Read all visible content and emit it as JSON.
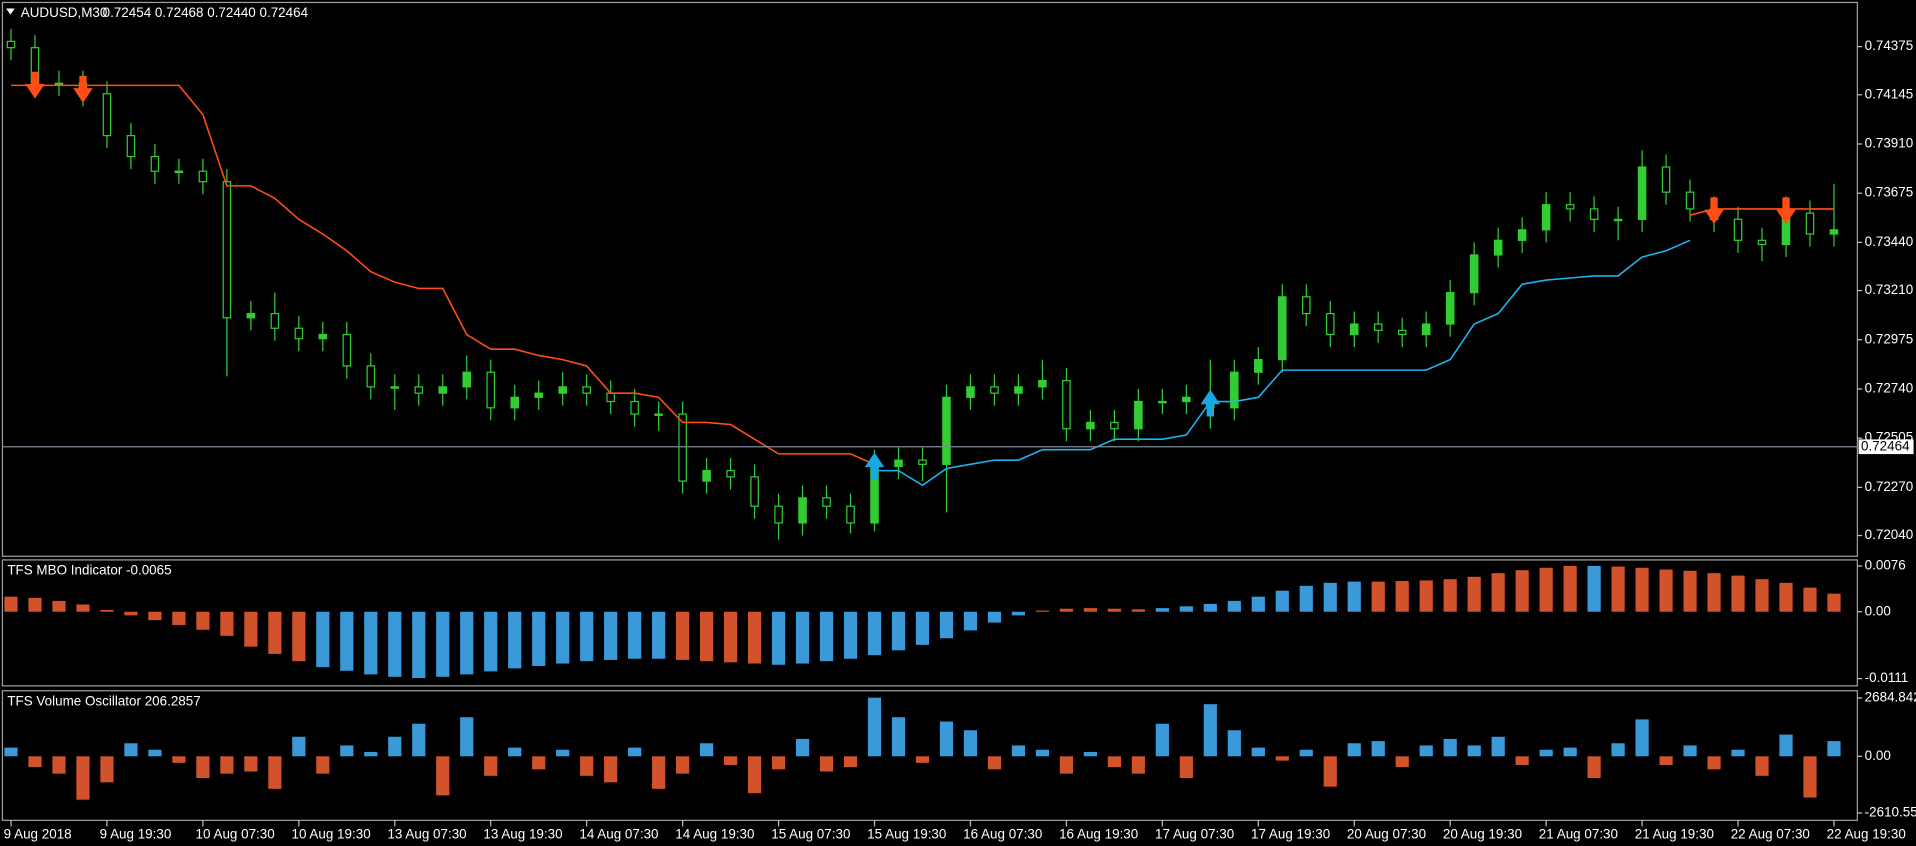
{
  "chart_data": [
    {
      "type": "candlestick",
      "title": "AUDUSD,M30",
      "subtitle": "0.72454 0.72468 0.72440 0.72464",
      "categories": [
        "9 Aug 2018",
        null,
        null,
        null,
        "9 Aug 19:30",
        null,
        null,
        null,
        "10 Aug 07:30",
        null,
        null,
        null,
        "10 Aug 19:30",
        null,
        null,
        null,
        "13 Aug 07:30",
        null,
        null,
        null,
        "13 Aug 19:30",
        null,
        null,
        null,
        "14 Aug 07:30",
        null,
        null,
        null,
        "14 Aug 19:30",
        null,
        null,
        null,
        "15 Aug 07:30",
        null,
        null,
        null,
        "15 Aug 19:30",
        null,
        null,
        null,
        "16 Aug 07:30",
        null,
        null,
        null,
        "16 Aug 19:30",
        null,
        null,
        null,
        "17 Aug 07:30",
        null,
        null,
        null,
        "17 Aug 19:30",
        null,
        null,
        null,
        "20 Aug 07:30",
        null,
        null,
        null,
        "20 Aug 19:30",
        null,
        null,
        null,
        "21 Aug 07:30",
        null,
        null,
        null,
        "21 Aug 19:30",
        null,
        null,
        null,
        "22 Aug 07:30",
        null,
        null,
        null,
        "22 Aug 19:30"
      ],
      "open": [
        0.744,
        0.7437,
        0.742,
        0.742,
        0.7415,
        0.7395,
        0.7385,
        0.7378,
        0.7378,
        0.7373,
        0.7308,
        0.731,
        0.7303,
        0.7298,
        0.73,
        0.7285,
        0.7275,
        0.7275,
        0.7272,
        0.7275,
        0.7282,
        0.7265,
        0.727,
        0.7272,
        0.7275,
        0.7272,
        0.7268,
        0.7262,
        0.7262,
        0.723,
        0.7235,
        0.7232,
        0.7218,
        0.721,
        0.7222,
        0.7218,
        0.721,
        0.7237,
        0.724,
        0.7238,
        0.727,
        0.7275,
        0.7272,
        0.7275,
        0.7278,
        0.7255,
        0.7258,
        0.7255,
        0.7268,
        0.7268,
        0.727,
        0.7265,
        0.7282,
        0.7288,
        0.7318,
        0.731,
        0.73,
        0.7305,
        0.7302,
        0.73,
        0.7305,
        0.732,
        0.7338,
        0.7345,
        0.735,
        0.7362,
        0.736,
        0.7355,
        0.7355,
        0.738,
        0.7368,
        0.736,
        0.7355,
        0.7345,
        0.7343,
        0.7358,
        0.7348
      ],
      "high": [
        0.7446,
        0.7443,
        0.7426,
        0.7426,
        0.7421,
        0.7401,
        0.7391,
        0.7384,
        0.7384,
        0.7379,
        0.7316,
        0.732,
        0.7309,
        0.7306,
        0.7306,
        0.7291,
        0.7281,
        0.7281,
        0.7281,
        0.729,
        0.7288,
        0.7276,
        0.7278,
        0.7282,
        0.7281,
        0.7278,
        0.7274,
        0.7268,
        0.7268,
        0.7241,
        0.7241,
        0.7238,
        0.7224,
        0.7228,
        0.7228,
        0.7224,
        0.7245,
        0.7246,
        0.7246,
        0.7276,
        0.7281,
        0.7281,
        0.7281,
        0.7288,
        0.7284,
        0.7264,
        0.7264,
        0.7274,
        0.7274,
        0.7276,
        0.7288,
        0.7288,
        0.7294,
        0.7324,
        0.7324,
        0.7316,
        0.7311,
        0.7311,
        0.7308,
        0.7311,
        0.7326,
        0.7344,
        0.7351,
        0.7356,
        0.7368,
        0.7368,
        0.7366,
        0.7361,
        0.7388,
        0.7386,
        0.7374,
        0.7366,
        0.7361,
        0.7351,
        0.7366,
        0.7364,
        0.7372
      ],
      "low": [
        0.7431,
        0.7414,
        0.7414,
        0.7409,
        0.7389,
        0.7379,
        0.7372,
        0.7372,
        0.7367,
        0.728,
        0.7302,
        0.7297,
        0.7292,
        0.7292,
        0.7279,
        0.7269,
        0.7264,
        0.7266,
        0.7266,
        0.7269,
        0.7259,
        0.7259,
        0.7264,
        0.7266,
        0.7266,
        0.7262,
        0.7256,
        0.7254,
        0.7224,
        0.7224,
        0.7226,
        0.7212,
        0.7202,
        0.7204,
        0.7212,
        0.7205,
        0.7206,
        0.7231,
        0.723,
        0.7215,
        0.7264,
        0.7266,
        0.7266,
        0.7269,
        0.7249,
        0.7249,
        0.7249,
        0.7249,
        0.7262,
        0.7262,
        0.7255,
        0.7259,
        0.7276,
        0.7282,
        0.7304,
        0.7294,
        0.7294,
        0.7296,
        0.7294,
        0.7294,
        0.7299,
        0.7314,
        0.7332,
        0.7339,
        0.7344,
        0.7354,
        0.7349,
        0.7345,
        0.7349,
        0.7362,
        0.7354,
        0.7349,
        0.7339,
        0.7335,
        0.7337,
        0.7342,
        0.7342
      ],
      "close": [
        0.7437,
        0.742,
        0.742,
        0.7415,
        0.7395,
        0.7385,
        0.7378,
        0.7378,
        0.7373,
        0.7308,
        0.731,
        0.7303,
        0.7298,
        0.73,
        0.7285,
        0.7275,
        0.7275,
        0.7272,
        0.7275,
        0.7282,
        0.7265,
        0.727,
        0.7272,
        0.7275,
        0.7272,
        0.7268,
        0.7262,
        0.7262,
        0.723,
        0.7235,
        0.7232,
        0.7218,
        0.721,
        0.7222,
        0.7218,
        0.721,
        0.7237,
        0.724,
        0.7238,
        0.727,
        0.7275,
        0.7272,
        0.7275,
        0.7278,
        0.7255,
        0.7258,
        0.7255,
        0.7268,
        0.7268,
        0.727,
        0.7265,
        0.7282,
        0.7288,
        0.7318,
        0.731,
        0.73,
        0.7305,
        0.7302,
        0.73,
        0.7305,
        0.732,
        0.7338,
        0.7345,
        0.735,
        0.7362,
        0.736,
        0.7355,
        0.7355,
        0.738,
        0.7368,
        0.736,
        0.7355,
        0.7345,
        0.7343,
        0.7358,
        0.7348,
        0.735
      ],
      "color": "#32cd32",
      "series": [
        {
          "color": "#ff4d14",
          "values": [
            0.7419,
            0.7419,
            0.7419,
            0.7419,
            0.7419,
            0.7419,
            0.7419,
            0.7419,
            0.7405,
            0.7371,
            0.7371,
            0.7365,
            0.7355,
            0.7348,
            0.734,
            0.733,
            0.7325,
            0.7322,
            0.7322,
            0.73,
            0.7293,
            0.7293,
            0.729,
            0.7288,
            0.7285,
            0.7272,
            0.7272,
            0.727,
            0.7258,
            0.7258,
            0.7257,
            0.725,
            0.7243,
            0.7243,
            0.7243,
            0.7243,
            0.7238,
            null,
            null,
            null,
            null,
            null,
            null,
            null,
            null,
            null,
            null,
            null,
            null,
            null,
            null,
            null,
            null,
            null,
            null,
            null,
            null,
            null,
            null,
            null,
            null,
            null,
            null,
            null,
            null,
            null,
            null,
            null,
            null,
            null,
            0.7357,
            0.736,
            0.736,
            0.736,
            0.736,
            0.736,
            0.736
          ]
        },
        {
          "color": "#1eb4f0",
          "values": [
            null,
            null,
            null,
            null,
            null,
            null,
            null,
            null,
            null,
            null,
            null,
            null,
            null,
            null,
            null,
            null,
            null,
            null,
            null,
            null,
            null,
            null,
            null,
            null,
            null,
            null,
            null,
            null,
            null,
            null,
            null,
            null,
            null,
            null,
            null,
            null,
            0.7235,
            0.7235,
            0.7228,
            0.7236,
            0.7238,
            0.724,
            0.724,
            0.7245,
            0.7245,
            0.7245,
            0.725,
            0.725,
            0.725,
            0.7252,
            0.7268,
            0.7268,
            0.727,
            0.7283,
            0.7283,
            0.7283,
            0.7283,
            0.7283,
            0.7283,
            0.7283,
            0.7288,
            0.7305,
            0.731,
            0.7324,
            0.7326,
            0.7327,
            0.7328,
            0.7328,
            0.7337,
            0.734,
            0.7345,
            null,
            null,
            null,
            null,
            null,
            null
          ]
        },
        {
          "color": "#ff4d14",
          "marker": "arrow-down",
          "values": [
            null,
            0.7422,
            null,
            0.742,
            null,
            null,
            null,
            null,
            null,
            null,
            null,
            null,
            null,
            null,
            null,
            null,
            null,
            null,
            null,
            null,
            null,
            null,
            null,
            null,
            null,
            null,
            null,
            null,
            null,
            null,
            null,
            null,
            null,
            null,
            null,
            null,
            null,
            null,
            null,
            null,
            null,
            null,
            null,
            null,
            null,
            null,
            null,
            null,
            null,
            null,
            null,
            null,
            null,
            null,
            null,
            null,
            null,
            null,
            null,
            null,
            null,
            null,
            null,
            null,
            null,
            null,
            null,
            null,
            null,
            null,
            null,
            0.7362,
            null,
            null,
            0.7362,
            null,
            null
          ]
        },
        {
          "color": "#1aa7e6",
          "marker": "arrow-up",
          "values": [
            null,
            null,
            null,
            null,
            null,
            null,
            null,
            null,
            null,
            null,
            null,
            null,
            null,
            null,
            null,
            null,
            null,
            null,
            null,
            null,
            null,
            null,
            null,
            null,
            null,
            null,
            null,
            null,
            null,
            null,
            null,
            null,
            null,
            null,
            null,
            null,
            0.7232,
            null,
            null,
            null,
            null,
            null,
            null,
            null,
            null,
            null,
            null,
            null,
            null,
            null,
            0.7262,
            null,
            null,
            null,
            null,
            null,
            null,
            null,
            null,
            null,
            null,
            null,
            null,
            null,
            null,
            null,
            null,
            null,
            null,
            null,
            null,
            null,
            null,
            null,
            null,
            null,
            null
          ]
        }
      ],
      "current_price": 0.72464,
      "ylim": [
        0.71941,
        0.74586
      ],
      "yticks": [
        0.74375,
        0.74145,
        {
          "value": 0.7391,
          "label": "0.73910"
        },
        0.73675,
        {
          "value": 0.7344,
          "label": "0.73440"
        },
        {
          "value": 0.7321,
          "label": "0.73210"
        },
        0.72975,
        {
          "value": 0.7274,
          "label": "0.72740"
        },
        0.72505,
        {
          "value": 0.7227,
          "label": "0.72270"
        },
        {
          "value": 0.7204,
          "label": "0.72040"
        }
      ],
      "grid": false
    },
    {
      "type": "bar",
      "title": "TFS MBO Indicator -0.0065",
      "values": [
        0.0025,
        0.0023,
        0.0018,
        0.0012,
        0.0003,
        -0.0006,
        -0.0014,
        -0.0022,
        -0.003,
        -0.004,
        -0.0058,
        -0.007,
        -0.0082,
        -0.0092,
        -0.0098,
        -0.0104,
        -0.0108,
        -0.011,
        -0.0108,
        -0.0104,
        -0.0099,
        -0.0094,
        -0.009,
        -0.0086,
        -0.0082,
        -0.008,
        -0.0078,
        -0.0078,
        -0.008,
        -0.0082,
        -0.0084,
        -0.0086,
        -0.0088,
        -0.0086,
        -0.0082,
        -0.0078,
        -0.0072,
        -0.0064,
        -0.0055,
        -0.0044,
        -0.0031,
        -0.0018,
        -0.0006,
        0.0002,
        0.0005,
        0.0006,
        0.0005,
        0.0004,
        0.0006,
        0.0009,
        0.0013,
        0.0018,
        0.0025,
        0.0035,
        0.0043,
        0.0048,
        0.005,
        0.005,
        0.0051,
        0.0052,
        0.0054,
        0.0058,
        0.0064,
        0.0069,
        0.0073,
        0.0076,
        0.0076,
        0.0075,
        0.0073,
        0.007,
        0.0068,
        0.0064,
        0.006,
        0.0054,
        0.0048,
        0.004,
        0.003
      ],
      "colors": [
        "#d2522b",
        "#d2522b",
        "#d2522b",
        "#d2522b",
        "#d2522b",
        "#d2522b",
        "#d2522b",
        "#d2522b",
        "#d2522b",
        "#d2522b",
        "#d2522b",
        "#d2522b",
        "#d2522b",
        "#3a9ad9",
        "#3a9ad9",
        "#3a9ad9",
        "#3a9ad9",
        "#3a9ad9",
        "#3a9ad9",
        "#3a9ad9",
        "#3a9ad9",
        "#3a9ad9",
        "#3a9ad9",
        "#3a9ad9",
        "#3a9ad9",
        "#3a9ad9",
        "#3a9ad9",
        "#3a9ad9",
        "#d2522b",
        "#d2522b",
        "#d2522b",
        "#d2522b",
        "#3a9ad9",
        "#3a9ad9",
        "#3a9ad9",
        "#3a9ad9",
        "#3a9ad9",
        "#3a9ad9",
        "#3a9ad9",
        "#3a9ad9",
        "#3a9ad9",
        "#3a9ad9",
        "#3a9ad9",
        "#d2522b",
        "#d2522b",
        "#d2522b",
        "#d2522b",
        "#d2522b",
        "#3a9ad9",
        "#3a9ad9",
        "#3a9ad9",
        "#3a9ad9",
        "#3a9ad9",
        "#3a9ad9",
        "#3a9ad9",
        "#3a9ad9",
        "#3a9ad9",
        "#d2522b",
        "#d2522b",
        "#d2522b",
        "#d2522b",
        "#d2522b",
        "#d2522b",
        "#d2522b",
        "#d2522b",
        "#d2522b",
        "#3a9ad9",
        "#d2522b",
        "#d2522b",
        "#d2522b",
        "#d2522b",
        "#d2522b",
        "#d2522b",
        "#d2522b",
        "#d2522b",
        "#d2522b",
        "#d2522b"
      ],
      "ylim": [
        -0.0123,
        0.0086
      ],
      "yticks": [
        0.0076,
        {
          "value": 0,
          "label": "0.00"
        },
        -0.0111
      ]
    },
    {
      "type": "bar",
      "title": "TFS Volume Oscillator 206.2857",
      "values": [
        400,
        -500,
        -800,
        -2000,
        -1200,
        600,
        300,
        -300,
        -1000,
        -800,
        -700,
        -1500,
        900,
        -800,
        500,
        200,
        900,
        1500,
        -1800,
        1800,
        -900,
        400,
        -600,
        300,
        -900,
        -1200,
        400,
        -1500,
        -800,
        600,
        -400,
        -1700,
        -600,
        800,
        -700,
        -500,
        2700,
        1800,
        -300,
        1600,
        1200,
        -600,
        500,
        300,
        -800,
        200,
        -500,
        -800,
        1500,
        -1000,
        2400,
        1200,
        400,
        -200,
        300,
        -1400,
        600,
        700,
        -500,
        500,
        800,
        500,
        900,
        -400,
        300,
        400,
        -1000,
        600,
        1700,
        -400,
        500,
        -600,
        300,
        -900,
        1000,
        -1900,
        700
      ],
      "up_color": "#3a9ad9",
      "down_color": "#d2522b",
      "ylim": [
        -2950,
        3020
      ],
      "yticks": [
        2684.8429,
        {
          "value": 0,
          "label": "0.00"
        },
        -2610.557
      ]
    }
  ]
}
